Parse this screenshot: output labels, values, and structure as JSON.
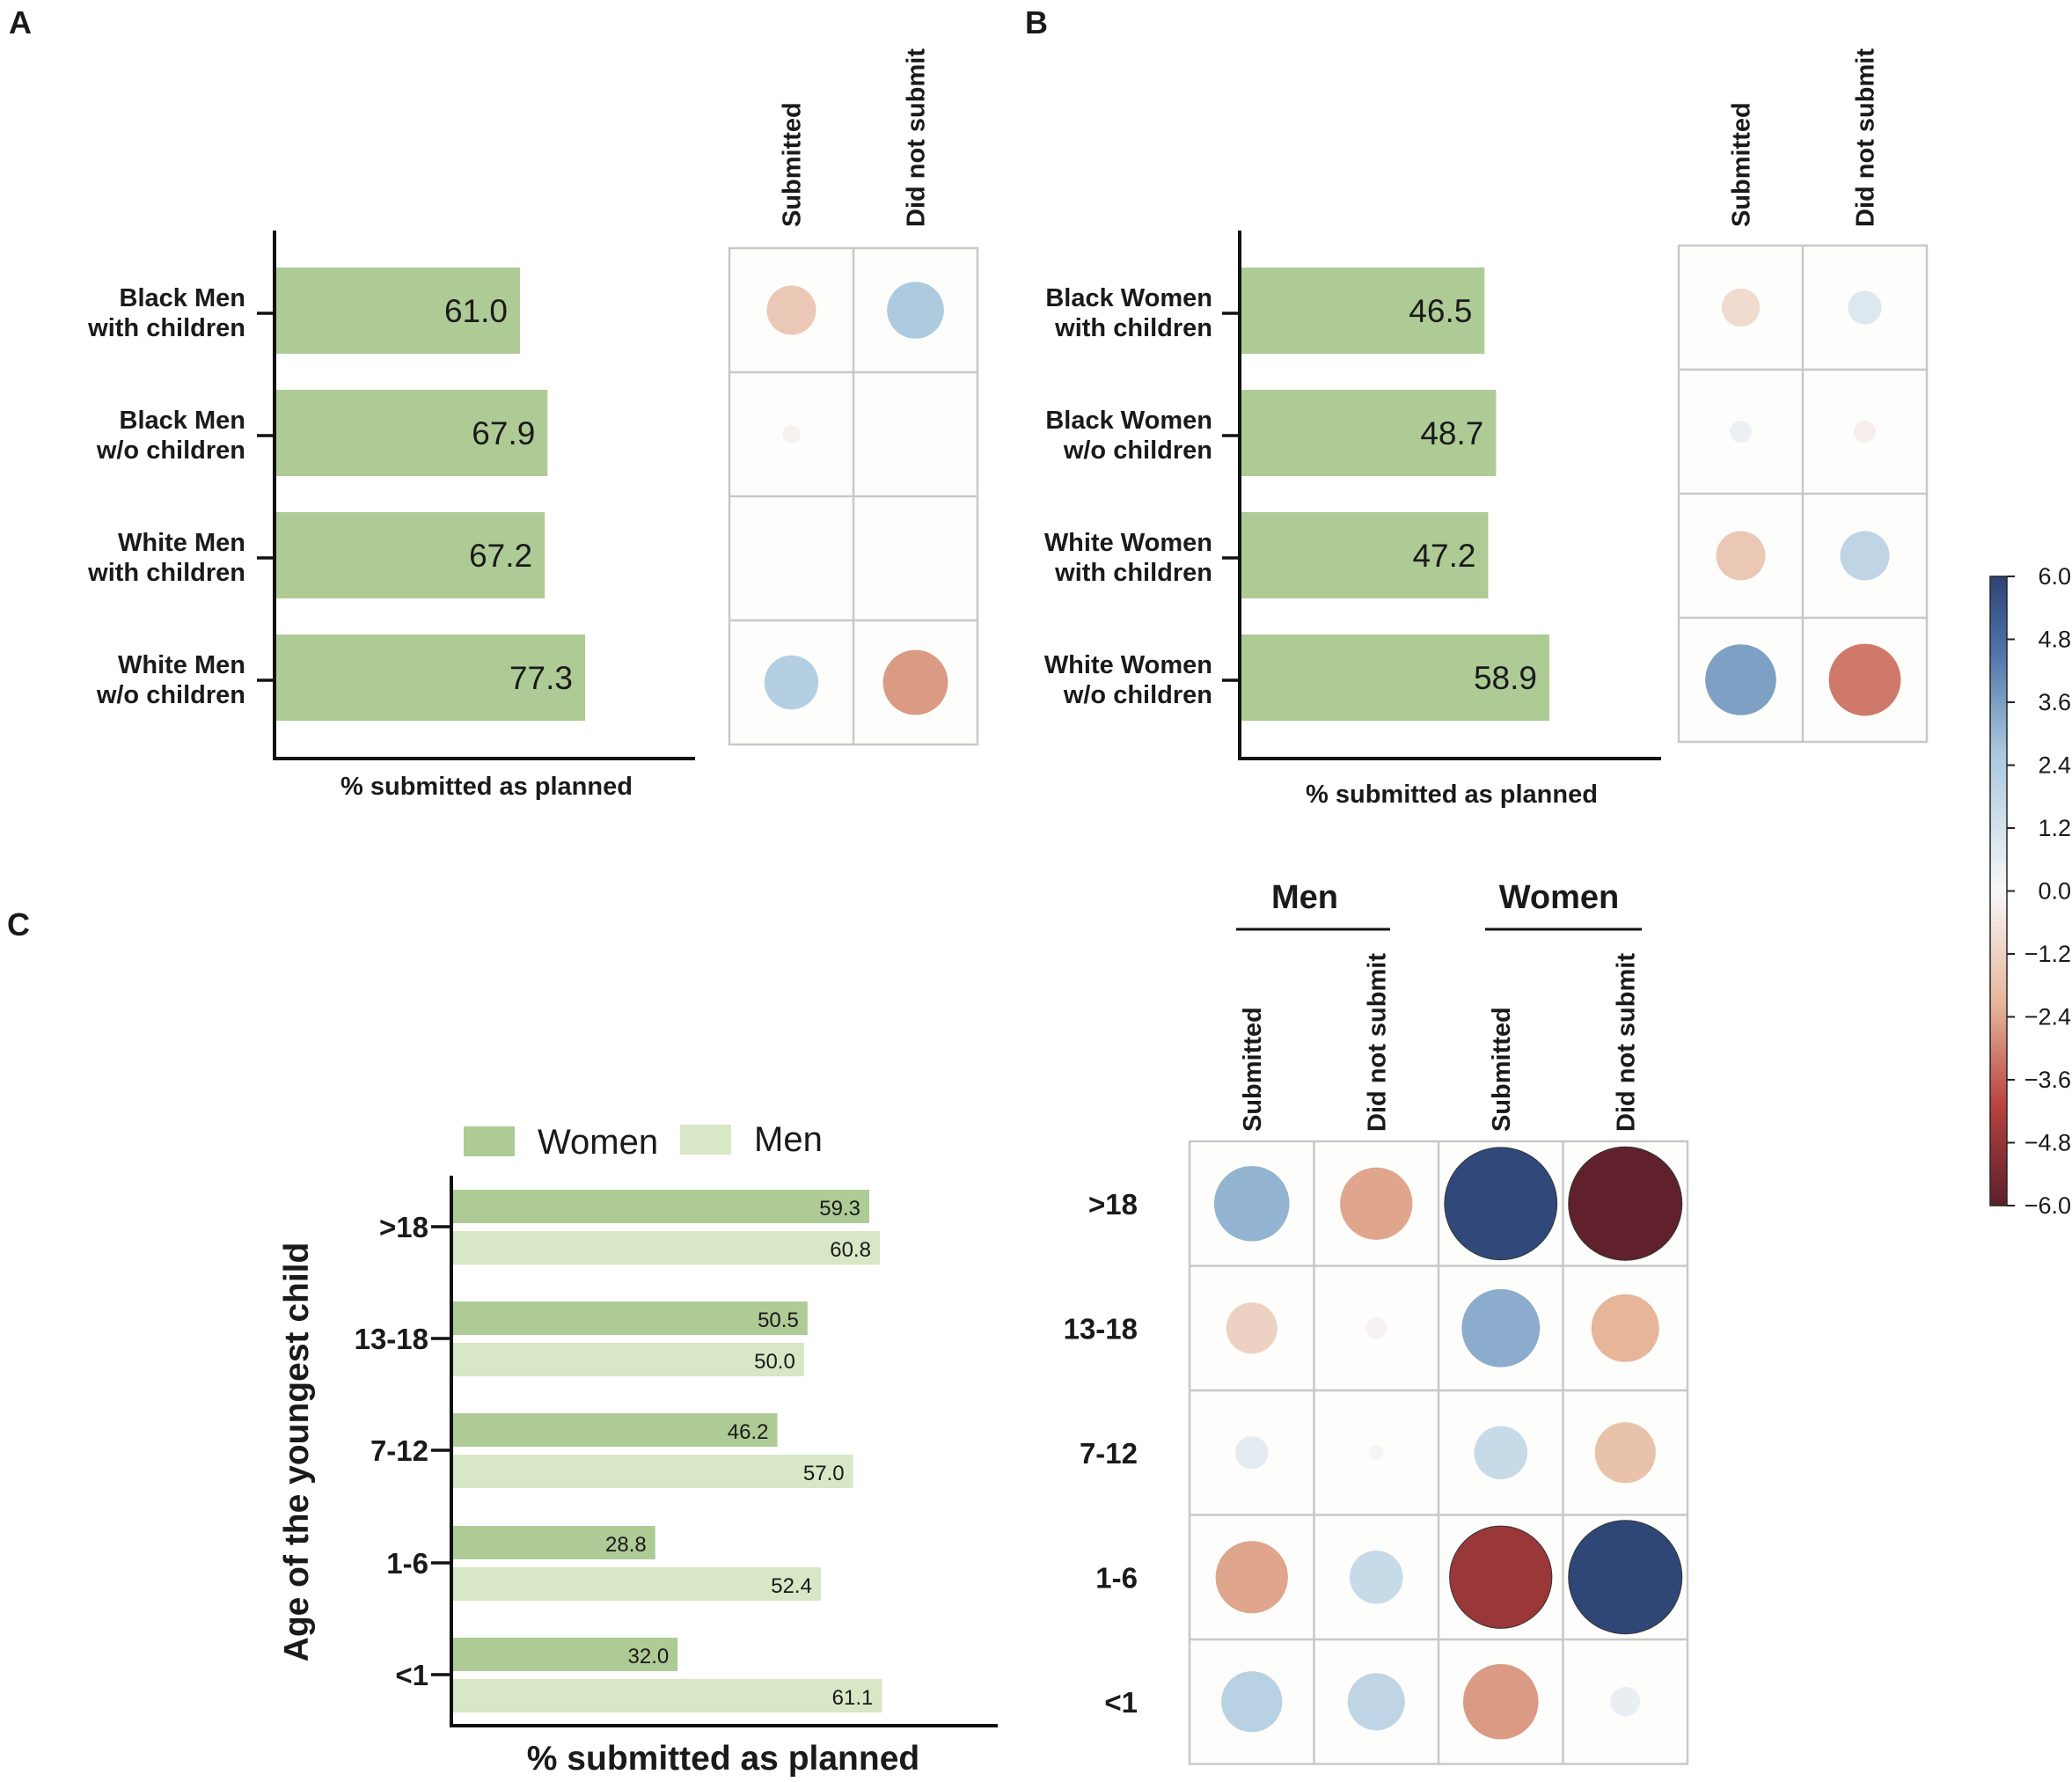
{
  "panels": {
    "A": "A",
    "B": "B",
    "C": "C"
  },
  "colors": {
    "women": "#aecb96",
    "men": "#d8e7c5",
    "axis": "#111111",
    "grid": "#c8c8c8",
    "cmap_neg_max": "#5b1f2b",
    "cmap_pos_max": "#2d4474"
  },
  "colorbar": {
    "min": -6.0,
    "max": 6.0,
    "ticks": [
      "6.0",
      "4.8",
      "3.6",
      "2.4",
      "1.2",
      "0.0",
      "−1.2",
      "−2.4",
      "−3.6",
      "−4.8",
      "−6.0"
    ]
  },
  "chart_data": [
    {
      "panel": "A",
      "type": "bar",
      "orientation": "horizontal",
      "categories": [
        [
          "Black Men",
          "with children"
        ],
        [
          "Black Men",
          "w/o children"
        ],
        [
          "White Men",
          "with children"
        ],
        [
          "White Men",
          "w/o children"
        ]
      ],
      "values": [
        61.0,
        67.9,
        67.2,
        77.3
      ],
      "value_labels": [
        "61.0",
        "67.9",
        "67.2",
        "77.3"
      ],
      "xlabel": "% submitted as planned",
      "xlim": [
        0,
        100
      ]
    },
    {
      "panel": "A",
      "type": "heatmap",
      "style": "bubble",
      "columns": [
        "Submitted",
        "Did not submit"
      ],
      "rows": [
        "Black Men with children",
        "Black Men w/o children",
        "White Men with children",
        "White Men w/o children"
      ],
      "residuals": [
        [
          -1.5,
          2.0
        ],
        [
          -0.2,
          0.0
        ],
        [
          0.0,
          0.0
        ],
        [
          1.8,
          -2.6
        ]
      ]
    },
    {
      "panel": "B",
      "type": "bar",
      "orientation": "horizontal",
      "categories": [
        [
          "Black Women",
          "with children"
        ],
        [
          "Black Women",
          "w/o children"
        ],
        [
          "White Women",
          "with children"
        ],
        [
          "White Women",
          "w/o children"
        ]
      ],
      "values": [
        46.5,
        48.7,
        47.2,
        58.9
      ],
      "value_labels": [
        "46.5",
        "48.7",
        "47.2",
        "58.9"
      ],
      "xlabel": "% submitted as planned",
      "xlim": [
        0,
        100
      ]
    },
    {
      "panel": "B",
      "type": "heatmap",
      "style": "bubble",
      "columns": [
        "Submitted",
        "Did not submit"
      ],
      "rows": [
        "Black Women with children",
        "Black Women w/o children",
        "White Women with children",
        "White Women w/o children"
      ],
      "residuals": [
        [
          -0.9,
          0.7
        ],
        [
          0.3,
          -0.3
        ],
        [
          -1.5,
          1.5
        ],
        [
          3.1,
          -3.2
        ]
      ]
    },
    {
      "panel": "C",
      "type": "bar",
      "orientation": "horizontal",
      "categories": [
        ">18",
        "13-18",
        "7-12",
        "1-6",
        "<1"
      ],
      "series": [
        {
          "name": "Women",
          "values": [
            59.3,
            50.5,
            46.2,
            28.8,
            32.0
          ],
          "labels": [
            "59.3",
            "50.5",
            "46.2",
            "28.8",
            "32.0"
          ]
        },
        {
          "name": "Men",
          "values": [
            60.8,
            50.0,
            57.0,
            52.4,
            61.1
          ],
          "labels": [
            "60.8",
            "50.0",
            "57.0",
            "52.4",
            "61.1"
          ]
        }
      ],
      "legend": [
        "Women",
        "Men"
      ],
      "xlabel": "% submitted as planned",
      "ylabel": "Age of the youngest child",
      "xlim": [
        0,
        80
      ]
    },
    {
      "panel": "C",
      "type": "heatmap",
      "style": "bubble",
      "groups": [
        "Men",
        "Women"
      ],
      "columns": [
        "Submitted",
        "Did not submit",
        "Submitted",
        "Did not submit"
      ],
      "rows": [
        ">18",
        "13-18",
        "7-12",
        "1-6",
        "<1"
      ],
      "residuals": [
        [
          2.6,
          -2.4,
          5.8,
          -5.9
        ],
        [
          -1.2,
          -0.2,
          2.8,
          -2.1
        ],
        [
          0.5,
          0.1,
          1.3,
          -1.7
        ],
        [
          -2.4,
          1.3,
          -4.8,
          5.9
        ],
        [
          1.7,
          1.5,
          -2.6,
          0.4
        ]
      ]
    }
  ]
}
